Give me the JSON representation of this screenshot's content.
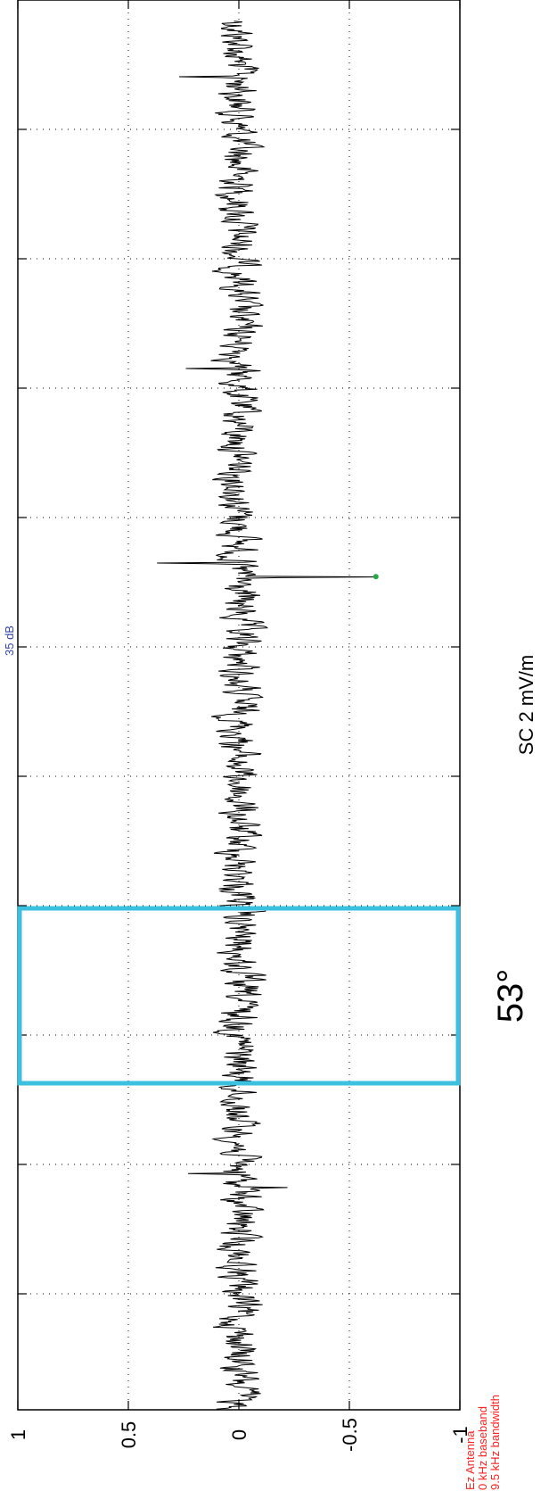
{
  "chart_data": {
    "type": "line",
    "orientation": "rotated-90-ccw",
    "ylabel": "SC 2 mV/m",
    "ylim": [
      -1,
      1
    ],
    "yticks": [
      1,
      0.5,
      0,
      -0.5,
      -1
    ],
    "ytick_labels": [
      "1",
      "0.5",
      "0",
      "-0.5",
      "-1"
    ],
    "grid": true,
    "db_label": "35 dB",
    "antenna_info": [
      "Ez Antenna",
      "0 kHz baseband",
      "9.5 kHz bandwidth"
    ],
    "angle_label": "53°",
    "highlight_color": "#3dbfe0",
    "line_color": "#000000",
    "marker_color": "#22aa44",
    "marker_value": -0.62,
    "spikes": [
      {
        "t": 0.04,
        "value": 0.27
      },
      {
        "t": 0.05,
        "value": -0.08
      },
      {
        "t": 0.25,
        "value": 0.24
      },
      {
        "t": 0.39,
        "value": 0.37
      },
      {
        "t": 0.4,
        "value": -0.62
      },
      {
        "t": 0.83,
        "value": 0.23
      },
      {
        "t": 0.84,
        "value": -0.22
      }
    ],
    "noise_amplitude": 0.08
  }
}
